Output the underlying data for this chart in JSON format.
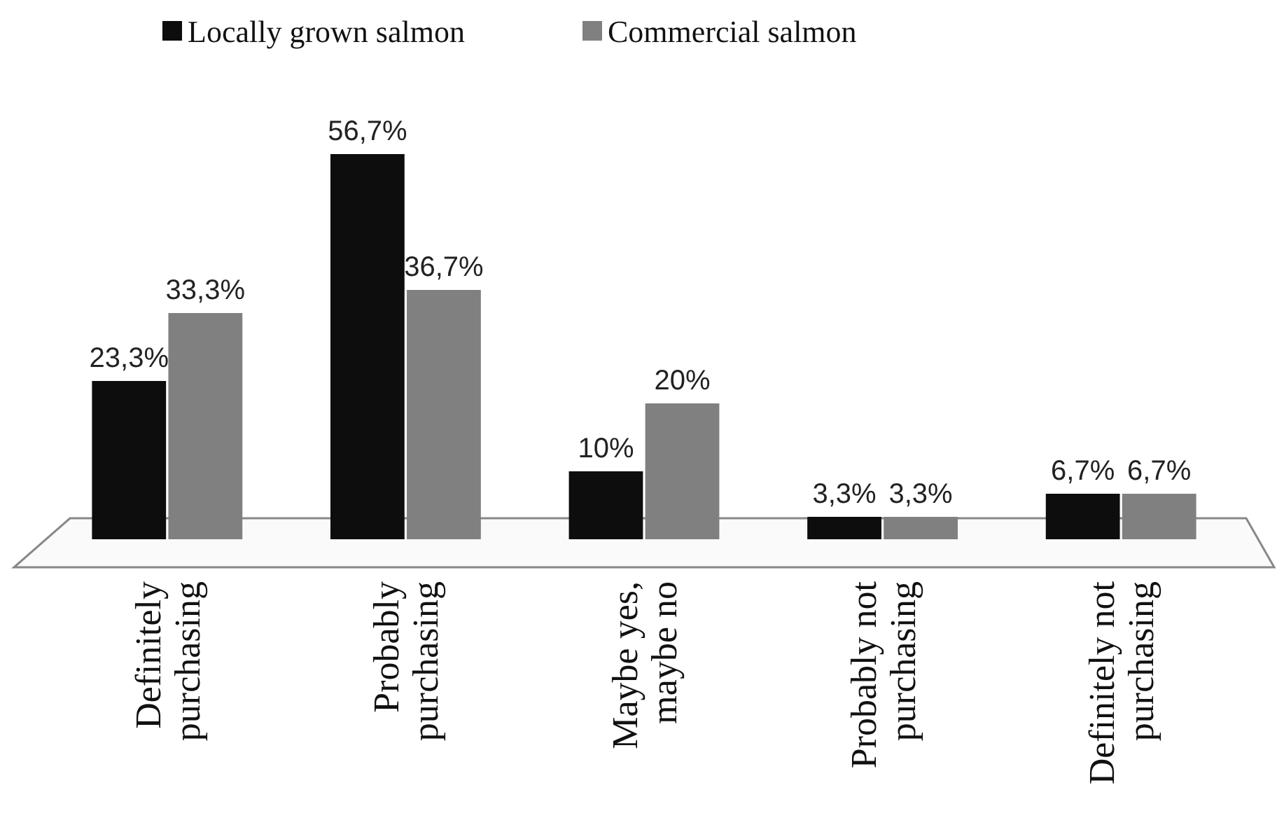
{
  "chart_data": {
    "type": "bar",
    "relative": false,
    "categories": [
      "Definitely purchasing",
      "Probably purchasing",
      "Maybe yes, maybe no",
      "Probably not purchasing",
      "Definitely not purchasing"
    ],
    "series": [
      {
        "name": "Locally grown salmon",
        "color": "#0d0d0d",
        "values": [
          23.3,
          56.7,
          10,
          3.3,
          6.7
        ],
        "value_labels": [
          "23,3%",
          "56,7%",
          "10%",
          "3,3%",
          "6,7%"
        ]
      },
      {
        "name": "Commercial salmon",
        "color": "#808080",
        "values": [
          33.3,
          36.7,
          20,
          3.3,
          6.7
        ],
        "value_labels": [
          "33,3%",
          "36,7%",
          "20%",
          "3,3%",
          "6,7%"
        ]
      }
    ],
    "legend": "top"
  }
}
